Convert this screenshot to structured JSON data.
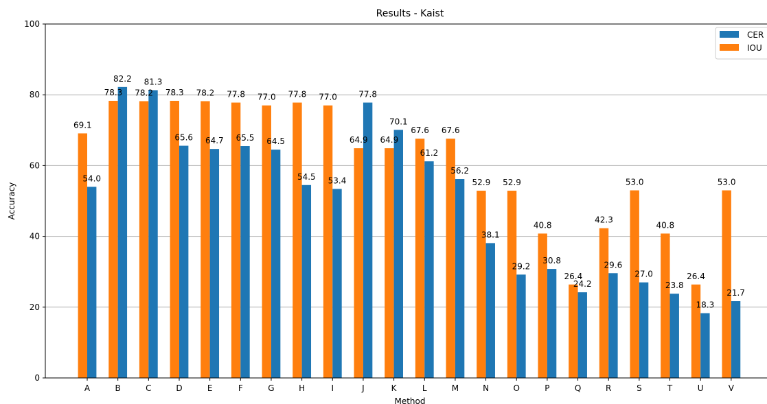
{
  "chart_data": {
    "type": "bar",
    "title": "Results - Kaist",
    "xlabel": "Method",
    "ylabel": "Accuracy",
    "ylim": [
      0,
      100
    ],
    "yticks": [
      0,
      20,
      40,
      60,
      80,
      100
    ],
    "grid": "horizontal",
    "legend_position": "top-right",
    "categories": [
      "A",
      "B",
      "C",
      "D",
      "E",
      "F",
      "G",
      "H",
      "I",
      "J",
      "K",
      "L",
      "M",
      "N",
      "O",
      "P",
      "Q",
      "R",
      "S",
      "T",
      "U",
      "V"
    ],
    "series": [
      {
        "name": "CER",
        "color": "#1f77b4",
        "values": [
          54.0,
          82.2,
          81.3,
          65.6,
          64.7,
          65.5,
          64.5,
          54.5,
          53.4,
          77.8,
          70.1,
          61.2,
          56.2,
          38.1,
          29.2,
          30.8,
          24.2,
          29.6,
          27.0,
          23.8,
          18.3,
          21.7
        ]
      },
      {
        "name": "IOU",
        "color": "#ff7f0e",
        "values": [
          69.1,
          78.3,
          78.2,
          78.3,
          78.2,
          77.8,
          77.0,
          77.8,
          77.0,
          64.9,
          64.9,
          67.6,
          67.6,
          52.9,
          52.9,
          40.8,
          26.4,
          42.3,
          53.0,
          40.8,
          26.4,
          53.0
        ]
      }
    ]
  }
}
